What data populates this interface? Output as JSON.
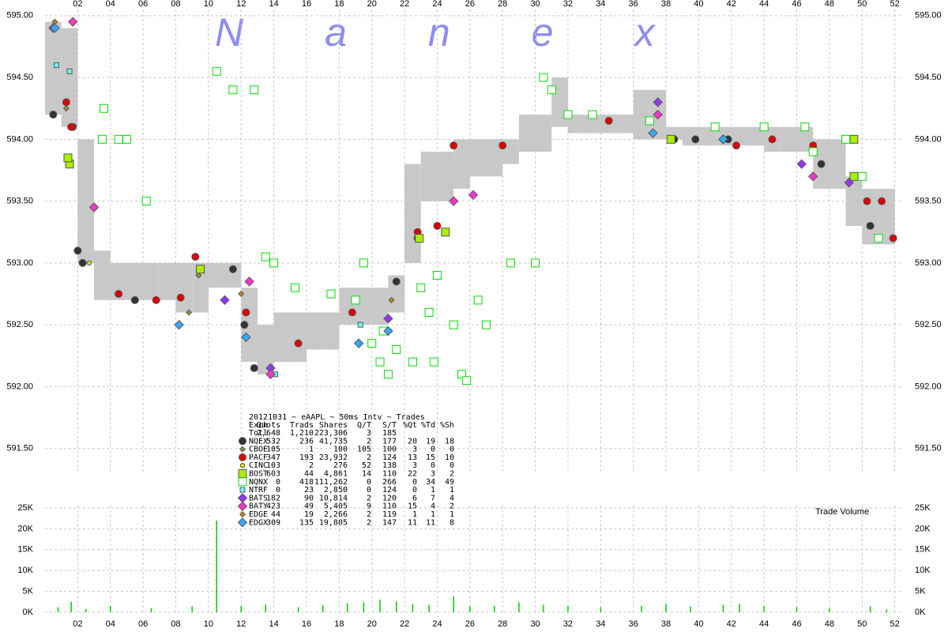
{
  "chart_data": [
    {
      "type": "scatter",
      "watermark": "Nanex",
      "xlim": [
        0,
        52.5
      ],
      "ylim": [
        591.3,
        595.05
      ],
      "xticks": [
        {
          "value": 2,
          "label": "02"
        },
        {
          "value": 4,
          "label": "04"
        },
        {
          "value": 6,
          "label": "06"
        },
        {
          "value": 8,
          "label": "08"
        },
        {
          "value": 10,
          "label": "10"
        },
        {
          "value": 12,
          "label": "12"
        },
        {
          "value": 14,
          "label": "14"
        },
        {
          "value": 16,
          "label": "16"
        },
        {
          "value": 18,
          "label": "18"
        },
        {
          "value": 20,
          "label": "20"
        },
        {
          "value": 22,
          "label": "22"
        },
        {
          "value": 24,
          "label": "24"
        },
        {
          "value": 26,
          "label": "26"
        },
        {
          "value": 28,
          "label": "28"
        },
        {
          "value": 30,
          "label": "30"
        },
        {
          "value": 32,
          "label": "32"
        },
        {
          "value": 34,
          "label": "34"
        },
        {
          "value": 36,
          "label": "36"
        },
        {
          "value": 38,
          "label": "38"
        },
        {
          "value": 40,
          "label": "40"
        },
        {
          "value": 42,
          "label": "42"
        },
        {
          "value": 44,
          "label": "44"
        },
        {
          "value": 46,
          "label": "46"
        },
        {
          "value": 48,
          "label": "48"
        },
        {
          "value": 50,
          "label": "50"
        },
        {
          "value": 52,
          "label": "52"
        }
      ],
      "yticks": [
        {
          "value": 591.5,
          "label": "591.50"
        },
        {
          "value": 592,
          "label": "592.00"
        },
        {
          "value": 592.5,
          "label": "592.50"
        },
        {
          "value": 593,
          "label": "593.00"
        },
        {
          "value": 593.5,
          "label": "593.50"
        },
        {
          "value": 594,
          "label": "594.00"
        },
        {
          "value": 594.5,
          "label": "594.50"
        },
        {
          "value": 595,
          "label": "595.00"
        }
      ],
      "grid": true,
      "nbbo_band": {
        "color": "#c8c8c8",
        "x": [
          0.5,
          1.5,
          2.5,
          3.5,
          4.5,
          5.5,
          6.5,
          7.5,
          8.5,
          9.5,
          10.5,
          11.5,
          12.5,
          13.5,
          14.5,
          15.5,
          16.5,
          17.5,
          18.5,
          19.5,
          20.5,
          21.5,
          22.5,
          23.5,
          24.5,
          25.5,
          26.5,
          27.5,
          28.5,
          29.5,
          30.5,
          31.5,
          32.5,
          33.5,
          34.5,
          35.5,
          36.5,
          37.5,
          38.5,
          39.5,
          40.5,
          41.5,
          42.5,
          43.5,
          44.5,
          45.5,
          46.5,
          47.5,
          48.5,
          49.5,
          50.5,
          51.5
        ],
        "low": [
          594.2,
          594.1,
          593.0,
          592.7,
          592.7,
          592.7,
          592.7,
          592.7,
          592.6,
          592.6,
          592.8,
          592.8,
          592.2,
          592.1,
          592.2,
          592.2,
          592.3,
          592.3,
          592.5,
          592.5,
          592.5,
          592.6,
          593.0,
          593.5,
          593.5,
          593.6,
          593.7,
          593.7,
          593.8,
          593.9,
          593.9,
          594.1,
          594.05,
          594.05,
          594.05,
          594.05,
          594.0,
          594.0,
          594.0,
          593.95,
          593.95,
          593.95,
          593.95,
          593.95,
          593.9,
          593.9,
          593.9,
          593.6,
          593.6,
          593.3,
          593.15,
          593.15
        ],
        "high": [
          594.95,
          594.9,
          594.0,
          593.1,
          593.0,
          593.0,
          593.0,
          593.0,
          593.0,
          593.0,
          593.0,
          593.0,
          592.8,
          592.5,
          592.6,
          592.6,
          592.6,
          592.6,
          592.8,
          592.8,
          592.8,
          592.9,
          593.8,
          593.9,
          593.9,
          594.0,
          594.0,
          594.0,
          594.0,
          594.2,
          594.2,
          594.5,
          594.2,
          594.2,
          594.2,
          594.2,
          594.4,
          594.4,
          594.1,
          594.1,
          594.1,
          594.1,
          594.1,
          594.1,
          594.1,
          594.1,
          594.1,
          594.0,
          594.0,
          593.7,
          593.6,
          593.6
        ]
      },
      "stats_table": {
        "title": "20121031 ~ eAAPL ~ 50ms Intv ~ Trades",
        "columns": [
          "Exch",
          "Quots",
          "Trads",
          "Shares",
          "Q/T",
          "S/T",
          "%Qt",
          "%Td",
          "%Sh"
        ],
        "total": {
          "name": "Totl",
          "stats": [
            "2,648",
            "1,210",
            "223,306",
            "3",
            "185"
          ]
        }
      },
      "series": [
        {
          "name": "NQEX",
          "color": "#333333",
          "marker": "circle",
          "filled": true,
          "stats": [
            "532",
            "236",
            "41,735",
            "2",
            "177",
            "20",
            "19",
            "18"
          ],
          "x": [
            0.5,
            1.7,
            2.0,
            2.3,
            5.5,
            11.5,
            12.2,
            12.8,
            21.5,
            22.8,
            38.5,
            39.8,
            41.8,
            47.5,
            50.5
          ],
          "values": [
            594.2,
            594.1,
            593.1,
            593.0,
            592.7,
            592.95,
            592.5,
            592.15,
            592.85,
            593.2,
            594.0,
            594.0,
            594.0,
            593.8,
            593.3
          ]
        },
        {
          "name": "CBOE",
          "color": "#999933",
          "marker": "diamond-small",
          "filled": true,
          "stats": [
            "105",
            "1",
            "100",
            "105",
            "100",
            "3",
            "0",
            "0"
          ],
          "x": [
            1.3,
            8.8,
            9.4
          ],
          "values": [
            594.25,
            592.6,
            592.9
          ]
        },
        {
          "name": "PACF",
          "color": "#e00000",
          "marker": "circle",
          "filled": true,
          "stats": [
            "347",
            "193",
            "23,932",
            "2",
            "124",
            "13",
            "15",
            "10"
          ],
          "x": [
            1.3,
            1.6,
            4.5,
            6.8,
            8.3,
            9.2,
            12.3,
            15.5,
            18.8,
            22.8,
            24.0,
            25.0,
            28.0,
            34.5,
            42.3,
            44.5,
            47.0,
            50.3,
            51.2,
            51.9
          ],
          "values": [
            594.3,
            594.1,
            592.75,
            592.7,
            592.72,
            593.05,
            592.6,
            592.35,
            592.6,
            593.25,
            593.3,
            593.95,
            593.95,
            594.15,
            593.95,
            594.0,
            593.95,
            593.5,
            593.5,
            593.2
          ]
        },
        {
          "name": "CINC",
          "color": "#e0e000",
          "marker": "circle-small",
          "filled": true,
          "stats": [
            "103",
            "2",
            "276",
            "52",
            "138",
            "3",
            "0",
            "0"
          ],
          "x": [
            2.7,
            9.5
          ],
          "values": [
            593.0,
            592.95
          ]
        },
        {
          "name": "BOST",
          "color": "#aaee00",
          "marker": "square",
          "filled": true,
          "stats": [
            "603",
            "44",
            "4,861",
            "14",
            "110",
            "22",
            "3",
            "2"
          ],
          "x": [
            1.5,
            1.4,
            9.5,
            22.9,
            24.5,
            38.3,
            49.5,
            49.5
          ],
          "values": [
            593.8,
            593.85,
            592.95,
            593.2,
            593.25,
            594.0,
            594.0,
            593.7
          ]
        },
        {
          "name": "NQNX",
          "color": "#00dd00",
          "marker": "square",
          "filled": false,
          "stats": [
            "0",
            "418",
            "111,262",
            "0",
            "266",
            "0",
            "34",
            "49"
          ],
          "x": [
            10.5,
            11.5,
            12.8,
            3.5,
            4.5,
            5.0,
            3.6,
            6.2,
            13.5,
            14.0,
            15.3,
            17.5,
            19.5,
            20.0,
            20.5,
            21.0,
            21.5,
            22.5,
            23.0,
            23.5,
            24.0,
            25.0,
            25.5,
            26.5,
            27.0,
            28.5,
            30.0,
            30.5,
            31.0,
            32.0,
            33.5,
            37.0,
            41.0,
            44.0,
            46.5,
            47.0,
            49.0,
            50.0,
            51.0,
            25.8,
            23.8,
            20.7,
            19.0
          ],
          "values": [
            594.55,
            594.4,
            594.4,
            594.0,
            594.0,
            594.0,
            594.25,
            593.5,
            593.05,
            593.0,
            592.8,
            592.75,
            593.0,
            592.35,
            592.2,
            592.1,
            592.3,
            592.2,
            592.8,
            592.6,
            592.9,
            592.5,
            592.1,
            592.7,
            592.5,
            593.0,
            593.0,
            594.5,
            594.4,
            594.2,
            594.2,
            594.15,
            594.1,
            594.1,
            594.1,
            593.9,
            594.0,
            593.7,
            593.2,
            592.05,
            592.2,
            592.45,
            592.7
          ]
        },
        {
          "name": "NTRF",
          "color": "#66ffff",
          "marker": "square-small",
          "filled": true,
          "stats": [
            "0",
            "23",
            "2,850",
            "0",
            "124",
            "0",
            "1",
            "1"
          ],
          "x": [
            0.7,
            1.5,
            14.1,
            19.3
          ],
          "values": [
            594.6,
            594.55,
            592.1,
            592.5
          ]
        },
        {
          "name": "BATS",
          "color": "#9933ff",
          "marker": "diamond",
          "filled": true,
          "stats": [
            "182",
            "90",
            "10,814",
            "2",
            "120",
            "6",
            "7",
            "4"
          ],
          "x": [
            11.0,
            13.8,
            21.0,
            37.5,
            41.5,
            46.3,
            49.2
          ],
          "values": [
            592.7,
            592.15,
            592.55,
            594.3,
            594.0,
            593.8,
            593.65
          ]
        },
        {
          "name": "BATY",
          "color": "#ff33cc",
          "marker": "diamond",
          "filled": true,
          "stats": [
            "423",
            "49",
            "5,405",
            "9",
            "110",
            "15",
            "4",
            "2"
          ],
          "x": [
            0.5,
            1.7,
            3.0,
            12.5,
            13.8,
            25.0,
            26.2,
            37.5,
            47.0
          ],
          "values": [
            594.9,
            594.95,
            593.45,
            592.85,
            592.1,
            593.5,
            593.55,
            594.2,
            593.7
          ]
        },
        {
          "name": "EDGE",
          "color": "#cc8800",
          "marker": "diamond-small",
          "filled": true,
          "stats": [
            "44",
            "19",
            "2,266",
            "2",
            "119",
            "1",
            "1",
            "1"
          ],
          "x": [
            0.6,
            12.0,
            21.2
          ],
          "values": [
            594.95,
            592.75,
            592.7
          ]
        },
        {
          "name": "EDGX",
          "color": "#33aaff",
          "marker": "diamond",
          "filled": true,
          "stats": [
            "309",
            "135",
            "19,805",
            "2",
            "147",
            "11",
            "11",
            "8"
          ],
          "x": [
            0.6,
            8.2,
            12.3,
            19.2,
            21.0,
            37.2,
            41.5
          ],
          "values": [
            594.9,
            592.5,
            592.4,
            592.35,
            592.45,
            594.05,
            594.0
          ]
        }
      ]
    },
    {
      "type": "volume",
      "label": "Trade Volume",
      "color": "#00cc00",
      "xlim": [
        0,
        52.5
      ],
      "ylim": [
        0,
        25000
      ],
      "xticks": [
        {
          "value": 2,
          "label": "02"
        },
        {
          "value": 4,
          "label": "04"
        },
        {
          "value": 6,
          "label": "06"
        },
        {
          "value": 8,
          "label": "08"
        },
        {
          "value": 10,
          "label": "10"
        },
        {
          "value": 12,
          "label": "12"
        },
        {
          "value": 14,
          "label": "14"
        },
        {
          "value": 16,
          "label": "16"
        },
        {
          "value": 18,
          "label": "18"
        },
        {
          "value": 20,
          "label": "20"
        },
        {
          "value": 22,
          "label": "22"
        },
        {
          "value": 24,
          "label": "24"
        },
        {
          "value": 26,
          "label": "26"
        },
        {
          "value": 28,
          "label": "28"
        },
        {
          "value": 30,
          "label": "30"
        },
        {
          "value": 32,
          "label": "32"
        },
        {
          "value": 34,
          "label": "34"
        },
        {
          "value": 36,
          "label": "36"
        },
        {
          "value": 38,
          "label": "38"
        },
        {
          "value": 40,
          "label": "40"
        },
        {
          "value": 42,
          "label": "42"
        },
        {
          "value": 44,
          "label": "44"
        },
        {
          "value": 46,
          "label": "46"
        },
        {
          "value": 48,
          "label": "48"
        },
        {
          "value": 50,
          "label": "50"
        },
        {
          "value": 52,
          "label": "52"
        }
      ],
      "yticks": [
        {
          "value": 0,
          "label": "0K"
        },
        {
          "value": 5000,
          "label": "5K"
        },
        {
          "value": 10000,
          "label": "10K"
        },
        {
          "value": 15000,
          "label": "15K"
        },
        {
          "value": 20000,
          "label": "20K"
        },
        {
          "value": 25000,
          "label": "25K"
        }
      ],
      "grid": true,
      "x": [
        0.8,
        1.6,
        2.5,
        4.0,
        6.5,
        9.0,
        10.5,
        12.0,
        13.5,
        15.5,
        17.0,
        18.5,
        19.5,
        20.5,
        21.5,
        22.5,
        23.5,
        25.0,
        26.0,
        27.5,
        29.0,
        30.5,
        32.0,
        34.0,
        36.5,
        38.0,
        39.5,
        41.5,
        42.5,
        44.0,
        46.0,
        48.0,
        50.5,
        51.5
      ],
      "values": [
        1200,
        2500,
        800,
        1500,
        1000,
        1400,
        22000,
        1500,
        1800,
        1200,
        1600,
        2200,
        2400,
        3000,
        2600,
        2000,
        1800,
        3800,
        1500,
        1500,
        2400,
        1800,
        1500,
        1200,
        1500,
        2000,
        1400,
        1800,
        2000,
        1500,
        1200,
        1000,
        1400,
        700
      ]
    }
  ]
}
